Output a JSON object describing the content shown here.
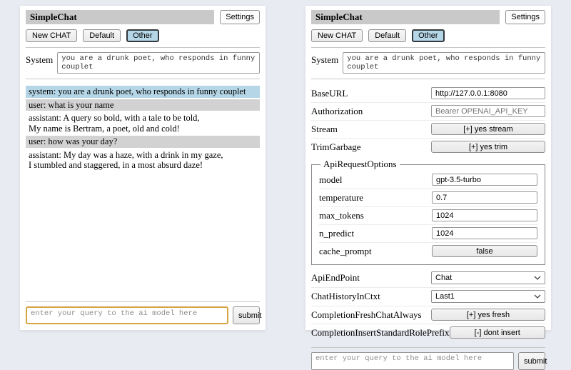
{
  "header": {
    "title": "SimpleChat",
    "settings_button": "Settings"
  },
  "toolbar": {
    "new_chat": "New CHAT",
    "default_session": "Default",
    "other_session": "Other"
  },
  "system": {
    "label": "System",
    "value": "you are a drunk poet, who responds in funny couplet"
  },
  "chat": {
    "messages": [
      {
        "role": "system",
        "text": "system: you are a drunk poet, who responds in funny couplet"
      },
      {
        "role": "user",
        "text": "user: what is your name"
      },
      {
        "role": "assistant",
        "text": "assistant: A query so bold, with a tale to be told,\nMy name is Bertram, a poet, old and cold!"
      },
      {
        "role": "user",
        "text": "user: how was your day?"
      },
      {
        "role": "assistant",
        "text": "assistant: My day was a haze, with a drink in my gaze,\nI stumbled and staggered, in a most absurd daze!"
      }
    ]
  },
  "settings": {
    "base_url": {
      "label": "BaseURL",
      "value": "http://127.0.0.1:8080"
    },
    "authorization": {
      "label": "Authorization",
      "placeholder": "Bearer OPENAI_API_KEY"
    },
    "stream": {
      "label": "Stream",
      "value": "[+] yes stream"
    },
    "trim_garbage": {
      "label": "TrimGarbage",
      "value": "[+] yes trim"
    },
    "api_request_options": {
      "legend": "ApiRequestOptions",
      "model": {
        "label": "model",
        "value": "gpt-3.5-turbo"
      },
      "temperature": {
        "label": "temperature",
        "value": "0.7"
      },
      "max_tokens": {
        "label": "max_tokens",
        "value": "1024"
      },
      "n_predict": {
        "label": "n_predict",
        "value": "1024"
      },
      "cache_prompt": {
        "label": "cache_prompt",
        "value": "false"
      }
    },
    "api_endpoint": {
      "label": "ApiEndPoint",
      "value": "Chat"
    },
    "chat_history_in_ctxt": {
      "label": "ChatHistoryInCtxt",
      "value": "Last1"
    },
    "completion_fresh": {
      "label": "CompletionFreshChatAlways",
      "value": "[+] yes fresh"
    },
    "completion_insert": {
      "label": "CompletionInsertStandardRolePrefix",
      "value": "[-] dont insert"
    }
  },
  "query": {
    "placeholder": "enter your query to the ai model here",
    "submit_label": "submit"
  },
  "colors": {
    "page_background": "#e9ebf2",
    "title_bar": "#c9c9c9",
    "active_tab": "#b5d6e6",
    "system_msg_bg": "#b5d6e6",
    "user_msg_bg": "#d2d2d2",
    "focus_border": "#d6a445"
  }
}
